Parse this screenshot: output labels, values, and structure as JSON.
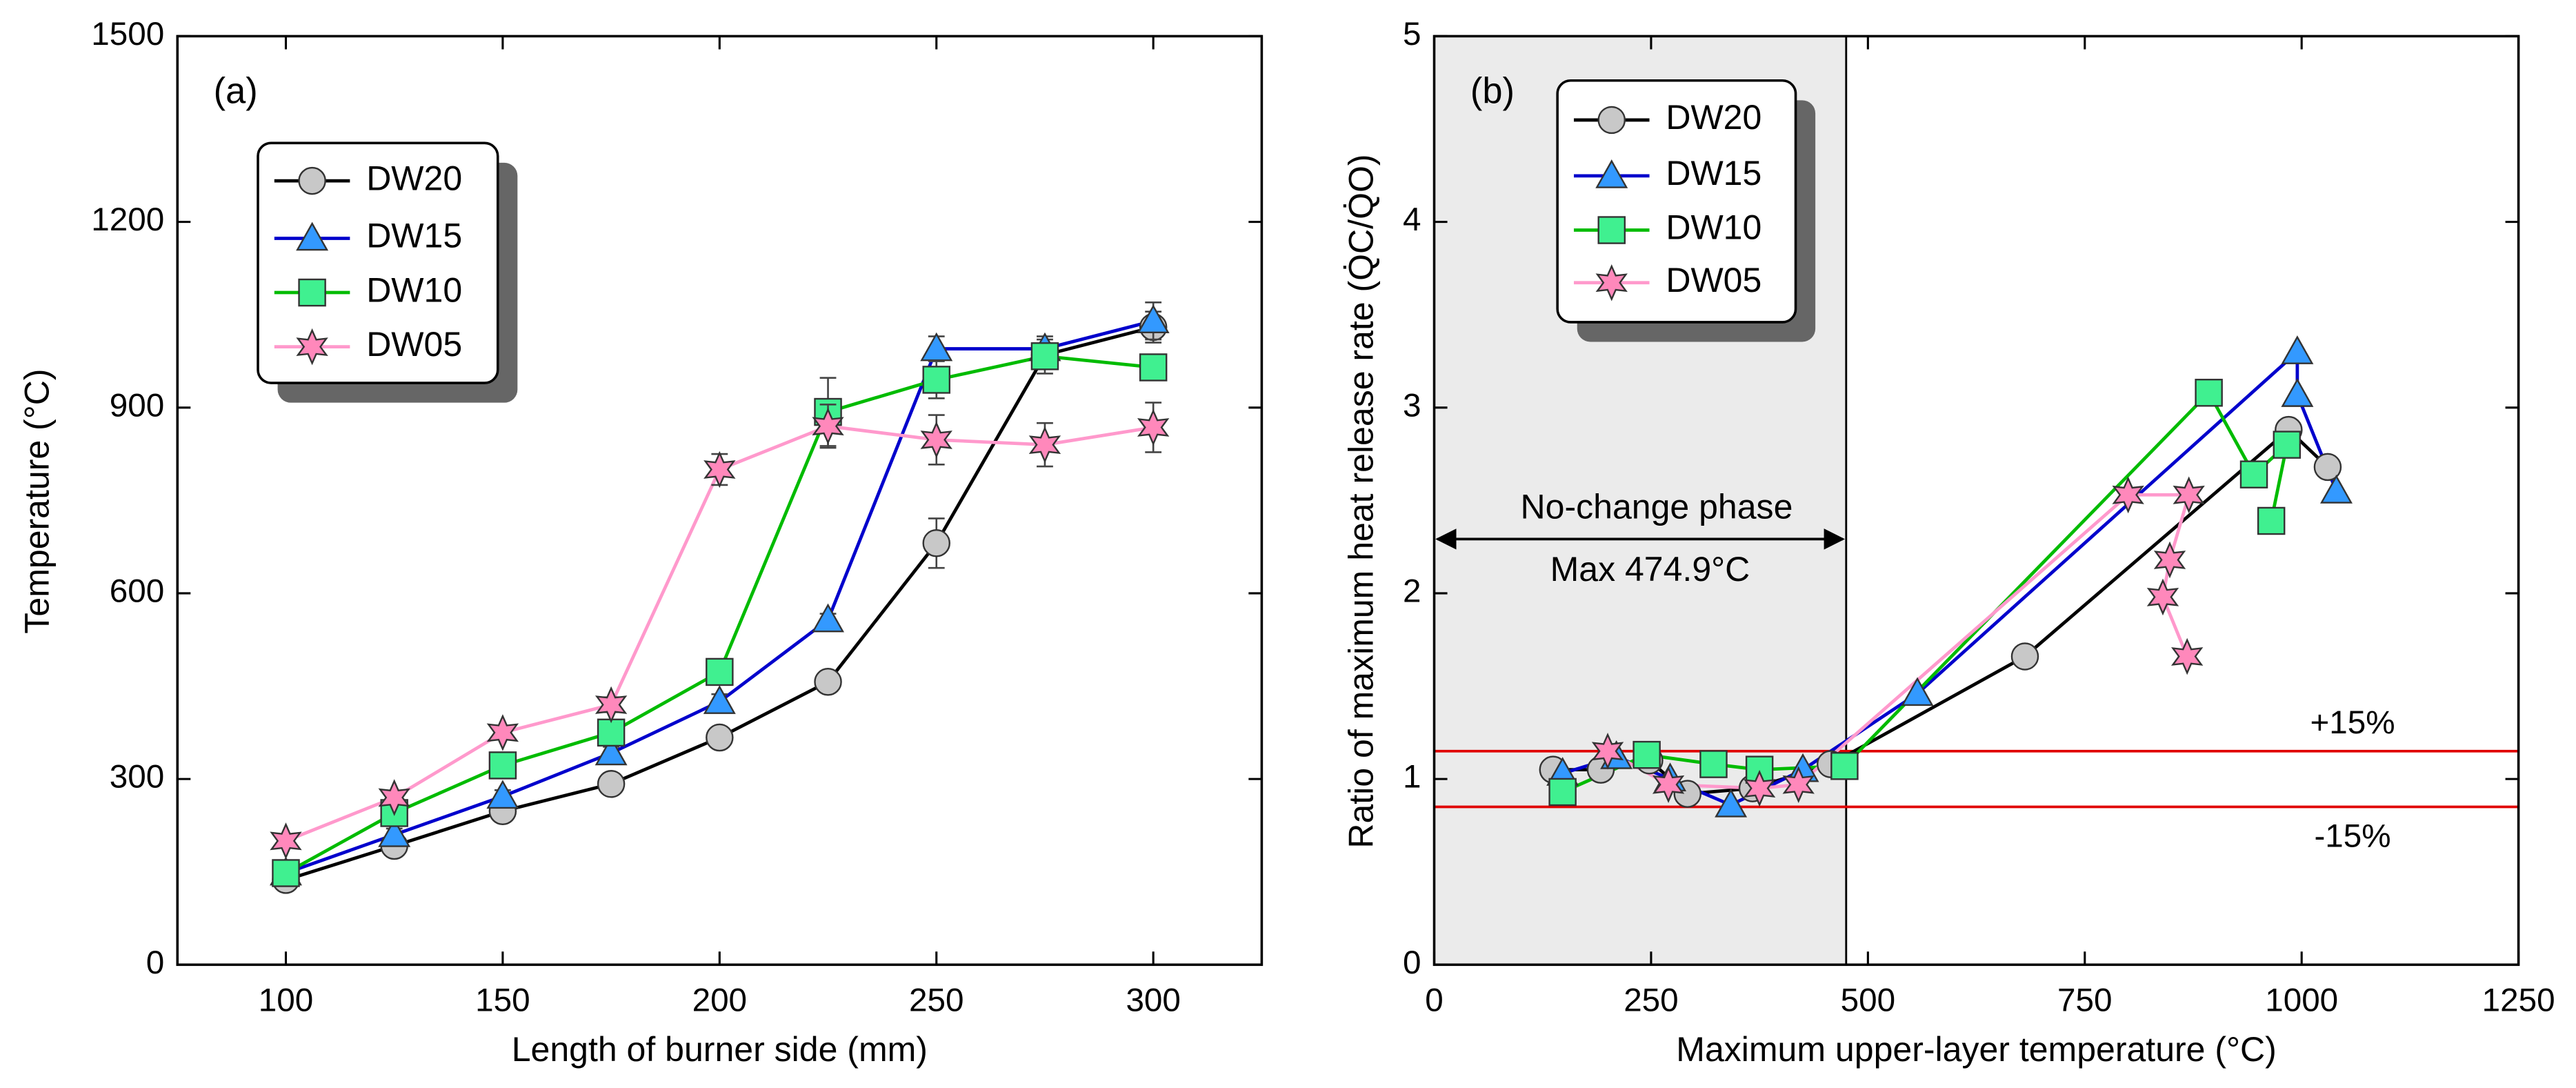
{
  "chart_data": [
    {
      "type": "line",
      "panel_label": "(a)",
      "xlabel": "Length of burner side (mm)",
      "ylabel": "Temperature (°C)",
      "x": [
        100,
        125,
        150,
        175,
        200,
        225,
        250,
        275,
        300
      ],
      "xlim": [
        75,
        325
      ],
      "xticks": [
        100,
        150,
        200,
        250,
        300
      ],
      "ylim": [
        0,
        1500
      ],
      "yticks": [
        0,
        300,
        600,
        900,
        1200,
        1500
      ],
      "series": [
        {
          "name": "DW20",
          "color": "#000000",
          "marker_color": "#c8c8c8",
          "marker": "circle",
          "values": [
            137,
            192,
            248,
            292,
            367,
            457,
            681,
            985,
            1030
          ],
          "errors": [
            8,
            10,
            10,
            12,
            10,
            12,
            40,
            30,
            25
          ]
        },
        {
          "name": "DW15",
          "color": "#0000cc",
          "marker_color": "#3399ff",
          "marker": "triangle",
          "values": [
            148,
            210,
            272,
            342,
            425,
            557,
            995,
            995,
            1040
          ],
          "errors": [
            8,
            10,
            10,
            10,
            12,
            10,
            20,
            15,
            30
          ]
        },
        {
          "name": "DW10",
          "color": "#00bb00",
          "marker_color": "#40f090",
          "marker": "square",
          "values": [
            148,
            245,
            322,
            375,
            473,
            893,
            945,
            983,
            965
          ],
          "errors": [
            8,
            10,
            12,
            12,
            10,
            55,
            30,
            20,
            15
          ]
        },
        {
          "name": "DW05",
          "color": "#ff99cc",
          "marker_color": "#ff88bb",
          "marker": "star",
          "values": [
            200,
            270,
            375,
            420,
            800,
            870,
            848,
            840,
            868
          ],
          "errors": [
            8,
            10,
            10,
            12,
            25,
            35,
            40,
            35,
            40
          ]
        }
      ]
    },
    {
      "type": "line",
      "panel_label": "(b)",
      "xlabel": "Maximum upper-layer temperature (°C)",
      "ylabel": "Ratio of maximum heat release rate (Q̇C/Q̇O)",
      "xlim": [
        0,
        1250
      ],
      "xticks": [
        0,
        250,
        500,
        750,
        1000,
        1250
      ],
      "ylim": [
        0,
        5
      ],
      "yticks": [
        0,
        1,
        2,
        3,
        4,
        5
      ],
      "shaded_region": [
        0,
        474.9
      ],
      "vertical_line": 474.9,
      "hlines": [
        {
          "value": 1.15,
          "label": "+15%"
        },
        {
          "value": 0.85,
          "label": "-15%"
        }
      ],
      "annotations": [
        "No-change phase",
        "Max 474.9°C"
      ],
      "series": [
        {
          "name": "DW20",
          "color": "#000000",
          "marker_color": "#c8c8c8",
          "marker": "circle",
          "x": [
            137,
            192,
            248,
            292,
            367,
            457,
            681,
            985,
            1030
          ],
          "values": [
            1.05,
            1.05,
            1.1,
            0.92,
            0.95,
            1.08,
            1.66,
            2.88,
            2.68
          ]
        },
        {
          "name": "DW15",
          "color": "#0000cc",
          "marker_color": "#3399ff",
          "marker": "triangle",
          "x": [
            148,
            210,
            272,
            342,
            425,
            557,
            995,
            995,
            1040
          ],
          "values": [
            1.03,
            1.12,
            1.0,
            0.86,
            1.05,
            1.46,
            3.3,
            3.07,
            2.55
          ]
        },
        {
          "name": "DW10",
          "color": "#00bb00",
          "marker_color": "#40f090",
          "marker": "square",
          "x": [
            148,
            245,
            322,
            375,
            473,
            893,
            945,
            983,
            965
          ],
          "values": [
            0.93,
            1.13,
            1.08,
            1.05,
            1.07,
            3.08,
            2.64,
            2.8,
            2.39
          ]
        },
        {
          "name": "DW05",
          "color": "#ff99cc",
          "marker_color": "#ff88bb",
          "marker": "star",
          "x": [
            200,
            270,
            375,
            420,
            800,
            870,
            848,
            840,
            868
          ],
          "values": [
            1.15,
            0.97,
            0.95,
            0.97,
            2.53,
            2.53,
            2.18,
            1.98,
            1.66
          ]
        }
      ]
    }
  ]
}
